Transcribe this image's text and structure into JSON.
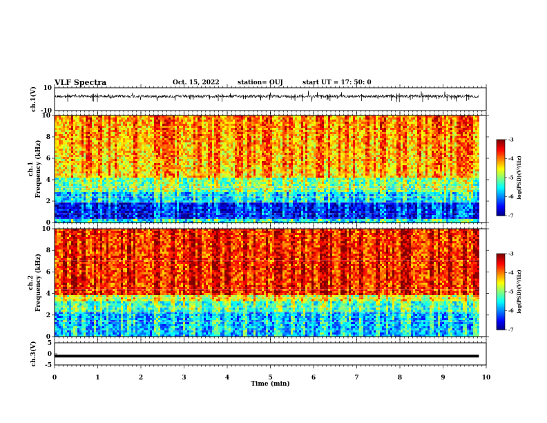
{
  "header": {
    "title": "VLF Spectra",
    "date": "Oct. 15, 2022",
    "station": "station= OUJ",
    "start_ut": "start  UT =   17: 50: 0"
  },
  "chart_data": [
    {
      "type": "line",
      "panel": "ch1-waveform",
      "ylabel": "ch.1(V)",
      "ylim": [
        -10,
        10
      ],
      "yticks": [
        "10",
        "-10"
      ],
      "xlim": [
        0,
        10
      ],
      "baseline_value": 2.5,
      "color": "#000000"
    },
    {
      "type": "heatmap",
      "panel": "ch1-spectrogram",
      "ylabel_line1": "ch.1",
      "ylabel_line2": "Frequency (kHz)",
      "ylim": [
        0,
        10
      ],
      "yticks": [
        "0",
        "2",
        "4",
        "6",
        "8",
        "10"
      ],
      "xlim": [
        0,
        9.83
      ],
      "colorbar": {
        "label": "log(PSD)(V²/Hz)",
        "range": [
          -7,
          -3
        ],
        "ticks": [
          "-3",
          "-4",
          "-5",
          "-6",
          "-7"
        ]
      }
    },
    {
      "type": "heatmap",
      "panel": "ch2-spectrogram",
      "ylabel_line1": "ch.2",
      "ylabel_line2": "Frequency (kHz)",
      "ylim": [
        0,
        10
      ],
      "yticks": [
        "0",
        "2",
        "4",
        "6",
        "8",
        "10"
      ],
      "xlim": [
        0,
        9.83
      ],
      "colorbar": {
        "label": "log(PSD)(V²/Hz)",
        "range": [
          -7,
          -3
        ],
        "ticks": [
          "-3",
          "-4",
          "-5",
          "-6",
          "-7"
        ]
      }
    },
    {
      "type": "line",
      "panel": "ch3-waveform",
      "ylabel": "ch.3(V)",
      "ylim": [
        -5,
        5
      ],
      "yticks": [
        "5",
        "0",
        "-5"
      ],
      "xlim": [
        0,
        10
      ],
      "baseline_value": -1,
      "color": "#000000"
    }
  ],
  "x_axis": {
    "label": "Time  (min)",
    "range": [
      0,
      10
    ],
    "ticks": [
      "0",
      "1",
      "2",
      "3",
      "4",
      "5",
      "6",
      "7",
      "8",
      "9",
      "10"
    ]
  }
}
